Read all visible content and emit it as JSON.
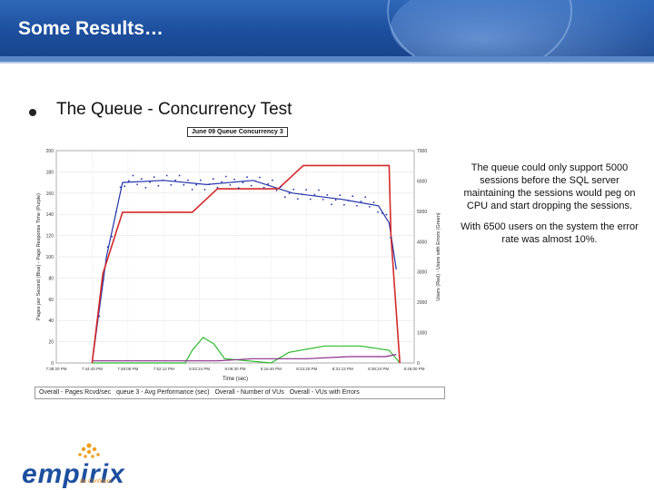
{
  "header": {
    "title": "Some Results…"
  },
  "bullet": {
    "text": "The Queue - Concurrency Test"
  },
  "chart": {
    "title": "June 09 Queue Concurrency 3",
    "x_label": "Time (sec)",
    "y_left_label": "Pages per Second (Blue) - Page Response Time (Purple)",
    "y_right_label": "Users (Red) - Users with Errors (Green)",
    "x_ticks": [
      "7:38:20 PM",
      "7:44:40 PM",
      "7:48:08 PM",
      "7:52:12 PM",
      "8:02:24 PM",
      "8:09:30 PM",
      "8:16:40 PM",
      "8:23:20 PM",
      "8:31:12 PM",
      "8:38:24 PM",
      "8:45:00 PM"
    ],
    "y_left_ticks": [
      "0",
      "20",
      "40",
      "60",
      "80",
      "100",
      "120",
      "140",
      "160",
      "180",
      "200"
    ],
    "y_right_ticks": [
      "0",
      "1000",
      "2000",
      "3000",
      "4000",
      "5000",
      "6000",
      "7000"
    ],
    "legend": [
      "Overall - Pages Rcvd/sec",
      "queue 3 - Avg Performance (sec)",
      "Overall - Number of VUs",
      "Overall - VUs with Errors"
    ],
    "colors": {
      "pages": "#2233aa",
      "response": "#8a2a8a",
      "users": "#d42a2a",
      "errors": "#2bbb2b"
    }
  },
  "notes": {
    "p1": "The queue could only support 5000 sessions before the SQL server maintaining the sessions would peg on CPU and start dropping the sessions.",
    "p2": "With 6500 users on the system the error rate was almost 10%."
  },
  "logo": {
    "name": "empirix",
    "tagline": "Be Confident"
  }
}
